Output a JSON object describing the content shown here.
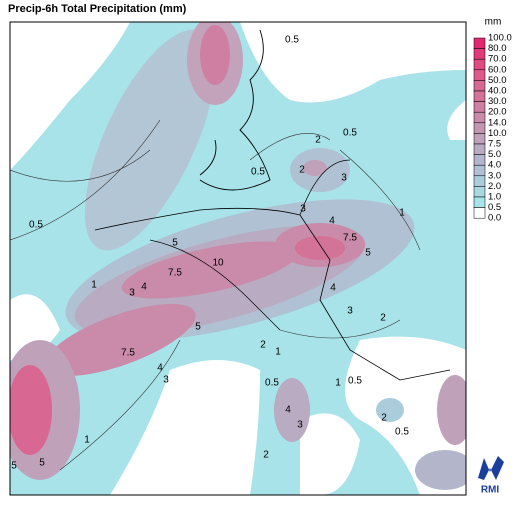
{
  "title": "Precip-6h Total Precipitation (mm)",
  "legend": {
    "unit": "mm",
    "labels": [
      "100.0",
      "80.0",
      "70.0",
      "60.0",
      "50.0",
      "40.0",
      "30.0",
      "20.0",
      "14.0",
      "10.0",
      "7.5",
      "5.0",
      "4.0",
      "3.0",
      "2.0",
      "1.0",
      "0.5",
      "0.0"
    ],
    "colors": [
      "#e2286f",
      "#e23a79",
      "#e04a81",
      "#dc5a89",
      "#d86791",
      "#d37398",
      "#cf7fa1",
      "#c98ba9",
      "#c497b1",
      "#bfa1b9",
      "#b8abc2",
      "#b3b6ca",
      "#afc1d3",
      "#abccdb",
      "#a9d7e2",
      "#a8e3ea",
      "#ffffff"
    ]
  },
  "contour_labels": [
    "0.5",
    "0.5",
    "0.5",
    "0.5",
    "2",
    "2",
    "3",
    "1",
    "3",
    "4",
    "7.5",
    "5",
    "10",
    "5",
    "7.5",
    "4",
    "3",
    "1",
    "4",
    "3",
    "2",
    "5",
    "2",
    "1",
    "7.5",
    "3",
    "4",
    "0.5",
    "0.5",
    "1",
    "4",
    "3",
    "2",
    "0.5",
    "1",
    "5",
    "5",
    "2"
  ],
  "logo": "RMI"
}
